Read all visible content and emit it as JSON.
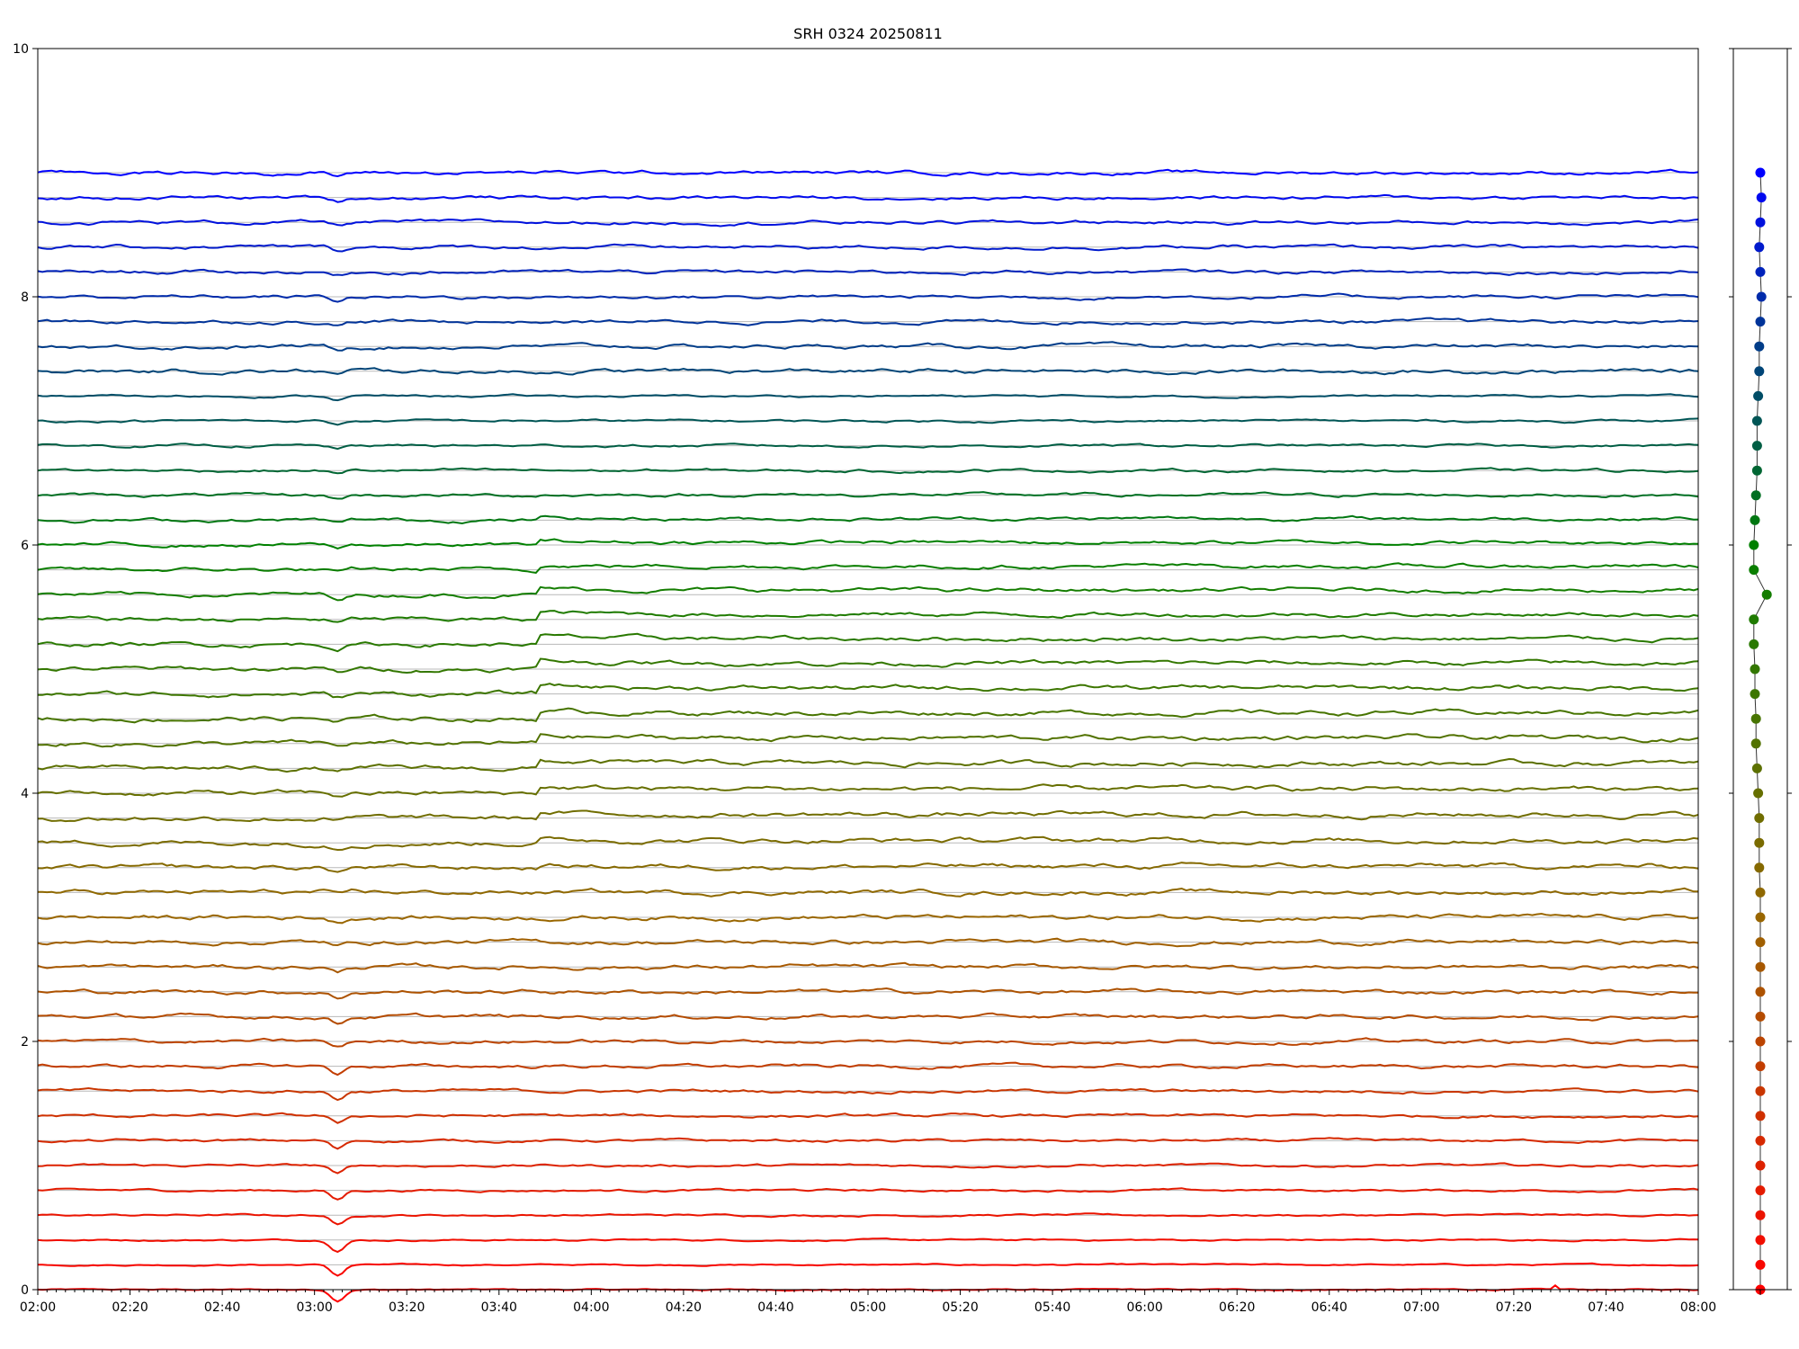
{
  "chart_data": [
    {
      "type": "line",
      "title": "SRH 0324 20250811",
      "xlabel": "",
      "ylabel": "",
      "x_range": [
        "02:00",
        "08:00"
      ],
      "ylim": [
        0,
        10
      ],
      "y_ticks": [
        0,
        2,
        4,
        6,
        8,
        10
      ],
      "x_ticks": [
        "02:00",
        "02:20",
        "02:40",
        "03:00",
        "03:20",
        "03:40",
        "04:00",
        "04:20",
        "04:40",
        "05:00",
        "05:20",
        "05:40",
        "06:00",
        "06:20",
        "06:40",
        "07:00",
        "07:20",
        "07:40",
        "08:00"
      ],
      "grid": "horizontal reference line at each trace baseline",
      "legend": "none",
      "n_series": 46,
      "series_offset_step": 0.2,
      "color_gradient": [
        "#ff0000",
        "#996600",
        "#008000",
        "#0000ff"
      ],
      "events": [
        {
          "time": "03:05",
          "description": "dip visible on most traces, strongest on lower red traces"
        },
        {
          "time": "03:49",
          "description": "step increase on middle green/olive traces"
        },
        {
          "time": "07:29",
          "description": "spike on lowest trace"
        }
      ]
    },
    {
      "type": "scatter",
      "title": "",
      "ylim": [
        0,
        10
      ],
      "points_y": [
        0.0,
        0.2,
        0.4,
        0.6,
        0.8,
        1.0,
        1.2,
        1.4,
        1.6,
        1.8,
        2.0,
        2.2,
        2.4,
        2.6,
        2.8,
        3.0,
        3.2,
        3.4,
        3.6,
        3.8,
        4.0,
        4.2,
        4.4,
        4.6,
        4.8,
        5.0,
        5.2,
        5.4,
        5.6,
        5.8,
        6.0,
        6.2,
        6.4,
        6.6,
        6.8,
        7.0,
        7.2,
        7.4,
        7.6,
        7.8,
        8.0,
        8.2,
        8.4,
        8.6,
        8.8,
        9.0
      ],
      "points_x_offset": [
        0.0,
        0.0,
        0.0,
        0.0,
        0.0,
        0.0,
        0.0,
        0.0,
        0.0,
        0.0,
        0.0,
        0.0,
        0.0,
        0.0,
        0.0,
        0.0,
        0.0,
        -0.1,
        -0.1,
        -0.1,
        -0.2,
        -0.3,
        -0.4,
        -0.4,
        -0.5,
        -0.5,
        -0.6,
        -0.6,
        0.6,
        -0.6,
        -0.6,
        -0.5,
        -0.4,
        -0.3,
        -0.3,
        -0.3,
        -0.2,
        -0.1,
        -0.1,
        0.0,
        0.1,
        0.0,
        -0.1,
        0.0,
        0.1,
        0.0
      ]
    }
  ]
}
